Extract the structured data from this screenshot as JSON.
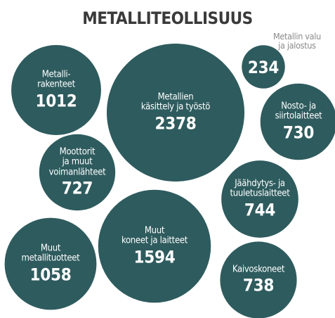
{
  "chart_data": {
    "type": "bubble",
    "title": "METALLITEOLLISUUS",
    "categories": [
      "Metalli-\nrakenteet",
      "Metallien\nkäsittely ja työstö",
      "Metallin valu\nja jalostus",
      "Nosto- ja\nsiirtolaitteet",
      "Moottorit\nja muut\nvoimanlähteet",
      "Jäähdytys- ja\ntuuletuslaitteet",
      "Muut\nkoneet ja laitteet",
      "Muut\nmetallituotteet",
      "Kaivoskoneet"
    ],
    "values": [
      1012,
      2378,
      234,
      730,
      727,
      744,
      1594,
      1058,
      738
    ],
    "color": "#2e5b5e"
  }
}
